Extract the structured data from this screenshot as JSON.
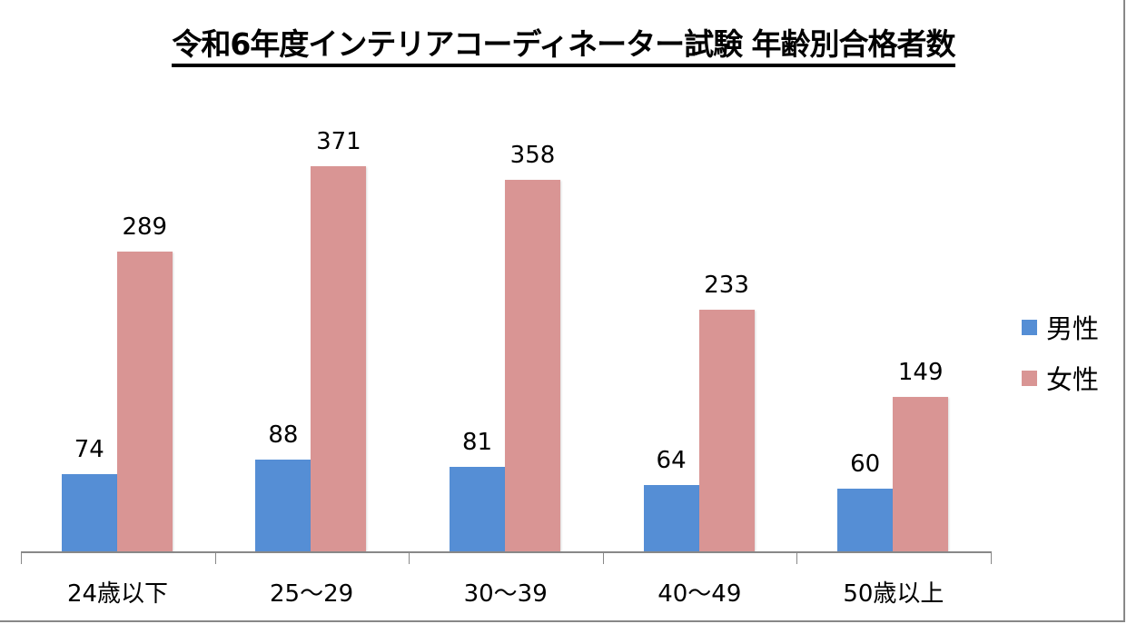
{
  "chart_data": {
    "type": "bar",
    "title": "令和6年度インテリアコーディネーター試験 年齢別合格者数",
    "categories": [
      "24歳以下",
      "25〜29",
      "30〜39",
      "40〜49",
      "50歳以上"
    ],
    "series": [
      {
        "name": "男性",
        "color": "#558ed5",
        "values": [
          74,
          88,
          81,
          64,
          60
        ]
      },
      {
        "name": "女性",
        "color": "#d99594",
        "values": [
          289,
          371,
          358,
          233,
          149
        ]
      }
    ],
    "xlabel": "",
    "ylabel": "",
    "ylim": [
      0,
      443
    ],
    "grid": false,
    "legend_position": "right",
    "data_labels": true
  }
}
